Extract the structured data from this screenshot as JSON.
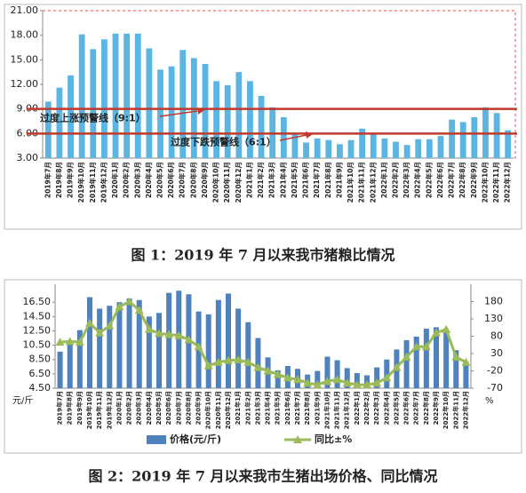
{
  "chart_data": [
    {
      "type": "bar",
      "caption": "图 1：2019 年 7 月以来我市猪粮比情况",
      "categories": [
        "2019年7月",
        "2019年8月",
        "2019年9月",
        "2019年10月",
        "2019年11月",
        "2019年12月",
        "2020年1月",
        "2020年2月",
        "2020年3月",
        "2020年4月",
        "2020年5月",
        "2020年6月",
        "2020年7月",
        "2020年8月",
        "2020年9月",
        "2020年10月",
        "2020年11月",
        "2020年12月",
        "2021年1月",
        "2021年2月",
        "2021年3月",
        "2021年4月",
        "2021年5月",
        "2021年6月",
        "2021年7月",
        "2021年8月",
        "2021年9月",
        "2021年10月",
        "2021年11月",
        "2021年12月",
        "2022年1月",
        "2022年2月",
        "2022年3月",
        "2022年4月",
        "2022年5月",
        "2022年6月",
        "2022年7月",
        "2022年8月",
        "2022年9月",
        "2022年10月",
        "2022年11月",
        "2022年12月"
      ],
      "values": [
        9.9,
        11.6,
        13.1,
        18.1,
        16.3,
        17.5,
        18.2,
        18.2,
        18.2,
        16.4,
        13.8,
        14.2,
        16.2,
        15.2,
        14.5,
        12.4,
        11.9,
        13.5,
        12.4,
        10.6,
        9.2,
        8.0,
        6.1,
        4.9,
        5.4,
        5.2,
        4.7,
        5.2,
        6.6,
        6.1,
        5.4,
        5.0,
        4.6,
        5.3,
        5.3,
        5.7,
        7.7,
        7.4,
        8.0,
        9.2,
        8.5,
        6.4
      ],
      "color": "#5bb5e3",
      "ylim": [
        3,
        21
      ],
      "yticks": [
        {
          "value": 3,
          "label": "3.00"
        },
        {
          "value": 6,
          "label": "6.00"
        },
        {
          "value": 9,
          "label": "9.00"
        },
        {
          "value": 12,
          "label": "12.00"
        },
        {
          "value": 15,
          "label": "15.00"
        },
        {
          "value": 18,
          "label": "18.00"
        },
        {
          "value": 21,
          "label": "21.00"
        }
      ],
      "reference_lines": [
        {
          "value": 9,
          "label": "过度上涨预警线（9:1）",
          "color": "#c0392b"
        },
        {
          "value": 6,
          "label": "过度下跌预警线（6:1）",
          "color": "#c0392b"
        }
      ]
    },
    {
      "type": "bar",
      "caption": "图 2：2019 年 7 月以来我市生猪出场价格、同比情况",
      "categories": [
        "2019年7月",
        "2019年8月",
        "2019年9月",
        "2019年10月",
        "2019年11月",
        "2019年12月",
        "2020年1月",
        "2020年2月",
        "2020年3月",
        "2020年4月",
        "2020年5月",
        "2020年6月",
        "2020年7月",
        "2020年8月",
        "2020年9月",
        "2020年10月",
        "2020年11月",
        "2020年12月",
        "2021年1月",
        "2021年2月",
        "2021年3月",
        "2021年4月",
        "2021年5月",
        "2021年6月",
        "2021年7月",
        "2021年8月",
        "2021年9月",
        "2021年10月",
        "2021年11月",
        "2021年12月",
        "2022年1月",
        "2022年2月",
        "2022年3月",
        "2022年4月",
        "2022年5月",
        "2022年6月",
        "2022年7月",
        "2022年8月",
        "2022年9月",
        "2022年10月",
        "2022年11月",
        "2022年12月"
      ],
      "series": [
        {
          "name": "价格(元/斤)",
          "type": "bar",
          "color": "#4f81bd",
          "values": [
            9.6,
            11.0,
            12.6,
            17.2,
            15.6,
            16.0,
            16.5,
            17.0,
            16.8,
            14.5,
            15.0,
            17.8,
            18.1,
            17.6,
            15.2,
            14.8,
            16.8,
            17.7,
            15.6,
            13.7,
            11.5,
            8.8,
            7.0,
            7.6,
            7.2,
            6.4,
            6.9,
            8.9,
            8.4,
            7.3,
            6.6,
            6.3,
            7.4,
            8.5,
            9.9,
            11.2,
            11.7,
            12.8,
            13.0,
            12.6,
            9.8,
            8.2
          ]
        },
        {
          "name": "同比±%",
          "type": "line",
          "axis": "y2",
          "color": "#9bbb59",
          "values": [
            63,
            65,
            63,
            118,
            90,
            110,
            165,
            180,
            155,
            100,
            88,
            85,
            82,
            70,
            50,
            -5,
            5,
            10,
            12,
            5,
            -10,
            -20,
            -30,
            -40,
            -45,
            -55,
            -60,
            -50,
            -45,
            -55,
            -60,
            -60,
            -55,
            -40,
            -10,
            20,
            50,
            50,
            90,
            100,
            20,
            5
          ]
        }
      ],
      "ylabel": "元/斤",
      "y2label": "%",
      "ylim": [
        4.5,
        19
      ],
      "yticks": [
        {
          "value": 4.5,
          "label": "4.50"
        },
        {
          "value": 6.5,
          "label": "6.50"
        },
        {
          "value": 8.5,
          "label": "8.50"
        },
        {
          "value": 10.5,
          "label": "10.50"
        },
        {
          "value": 12.5,
          "label": "12.50"
        },
        {
          "value": 14.5,
          "label": "14.50"
        },
        {
          "value": 16.5,
          "label": "16.50"
        }
      ],
      "y2lim": [
        -70,
        230
      ],
      "y2ticks": [
        -70,
        -20,
        30,
        80,
        130,
        180
      ]
    }
  ]
}
